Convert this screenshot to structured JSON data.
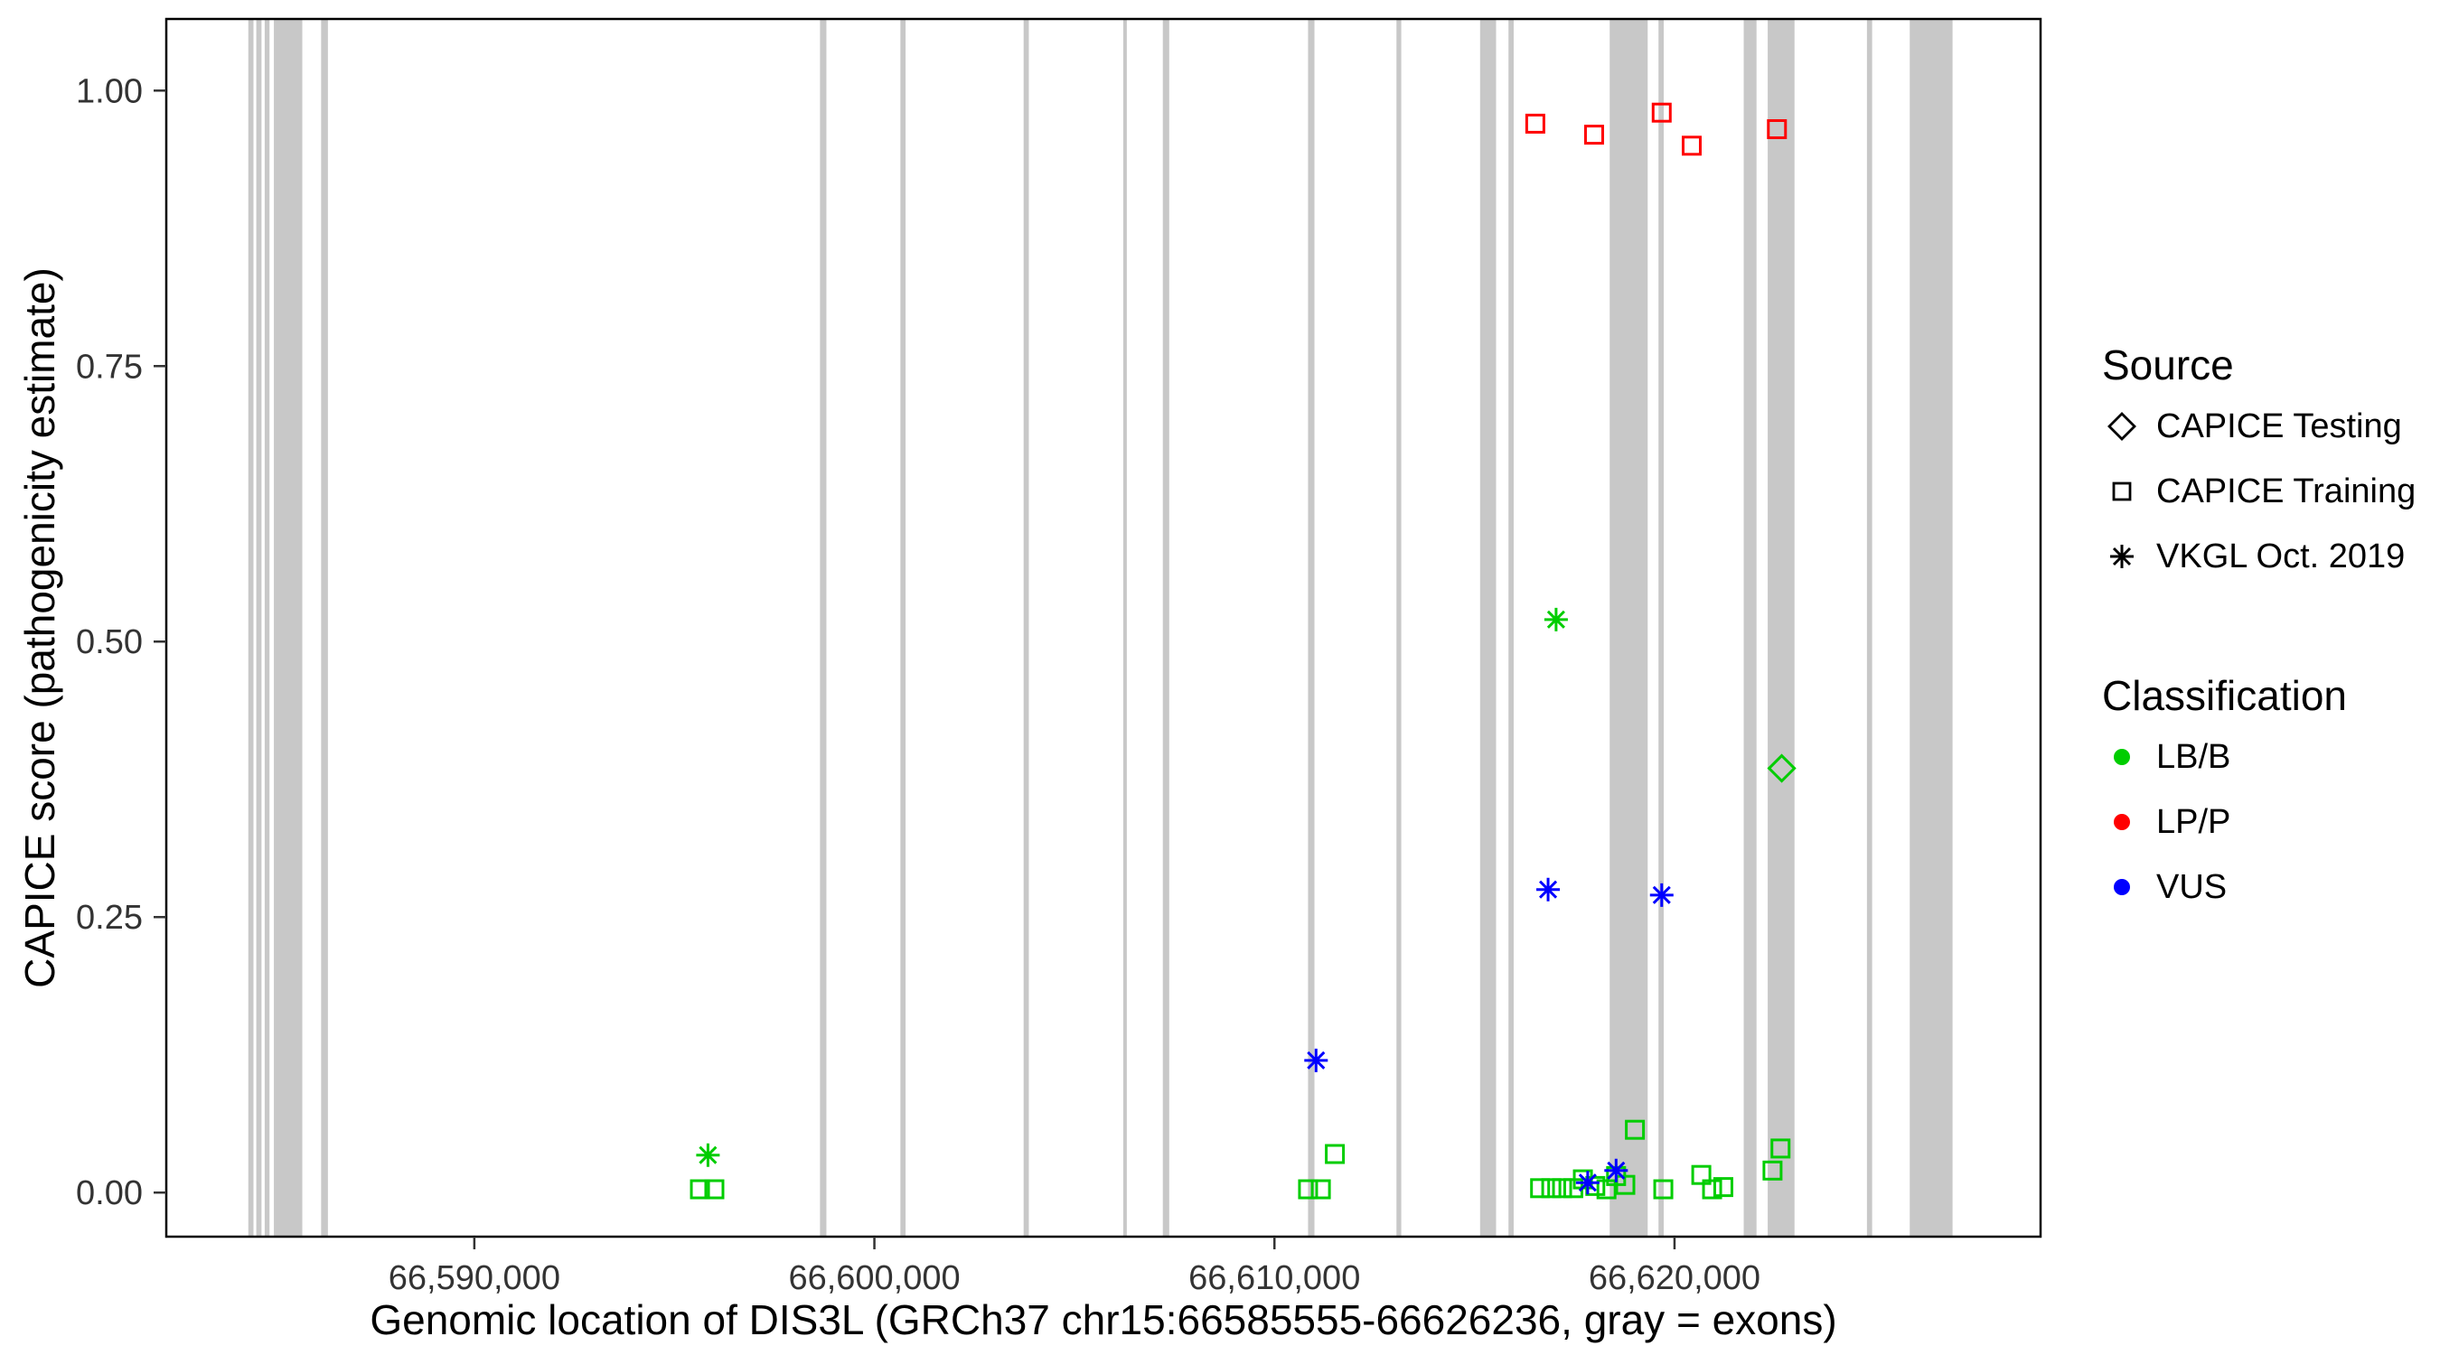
{
  "chart_data": {
    "type": "scatter",
    "title": "",
    "xlabel": "Genomic location of DIS3L (GRCh37 chr15:66585555-66626236, gray = exons)",
    "ylabel": "CAPICE score (pathogenicity estimate)",
    "xlim": [
      66582300,
      66629150
    ],
    "ylim": [
      -0.04,
      1.065
    ],
    "grid": false,
    "x_ticks": [
      {
        "value": 66590000,
        "label": "66,590,000"
      },
      {
        "value": 66600000,
        "label": "66,600,000"
      },
      {
        "value": 66610000,
        "label": "66,610,000"
      },
      {
        "value": 66620000,
        "label": "66,620,000"
      }
    ],
    "y_ticks": [
      {
        "value": 0.0,
        "label": "0.00"
      },
      {
        "value": 0.25,
        "label": "0.25"
      },
      {
        "value": 0.5,
        "label": "0.50"
      },
      {
        "value": 0.75,
        "label": "0.75"
      },
      {
        "value": 1.0,
        "label": "1.00"
      }
    ],
    "exon_color": "#C8C8C8",
    "exons": [
      [
        66584350,
        66584480
      ],
      [
        66584550,
        66584680
      ],
      [
        66584760,
        66584880
      ],
      [
        66584990,
        66585700
      ],
      [
        66586170,
        66586340
      ],
      [
        66598640,
        66598800
      ],
      [
        66600650,
        66600780
      ],
      [
        66603730,
        66603860
      ],
      [
        66606220,
        66606310
      ],
      [
        66607210,
        66607370
      ],
      [
        66610840,
        66611000
      ],
      [
        66613050,
        66613170
      ],
      [
        66615140,
        66615540
      ],
      [
        66615850,
        66615980
      ],
      [
        66618380,
        66619330
      ],
      [
        66619600,
        66619730
      ],
      [
        66621730,
        66622050
      ],
      [
        66622330,
        66623000
      ],
      [
        66624810,
        66624940
      ],
      [
        66625880,
        66626950
      ]
    ],
    "classification_colors": {
      "LB/B": "#00CD00",
      "LP/P": "#FF0000",
      "VUS": "#0000FF"
    },
    "source_shapes": {
      "CAPICE Testing": "diamond",
      "CAPICE Training": "square",
      "VKGL Oct. 2019": "asterisk"
    },
    "points": [
      {
        "x": 66616520,
        "y": 0.97,
        "classification": "LP/P",
        "source": "CAPICE Training"
      },
      {
        "x": 66617990,
        "y": 0.96,
        "classification": "LP/P",
        "source": "CAPICE Training"
      },
      {
        "x": 66619680,
        "y": 0.98,
        "classification": "LP/P",
        "source": "CAPICE Training"
      },
      {
        "x": 66620430,
        "y": 0.95,
        "classification": "LP/P",
        "source": "CAPICE Training"
      },
      {
        "x": 66622560,
        "y": 0.965,
        "classification": "LP/P",
        "source": "CAPICE Training"
      },
      {
        "x": 66595840,
        "y": 0.034,
        "classification": "LB/B",
        "source": "VKGL Oct. 2019"
      },
      {
        "x": 66617040,
        "y": 0.52,
        "classification": "LB/B",
        "source": "VKGL Oct. 2019"
      },
      {
        "x": 66595640,
        "y": 0.003,
        "classification": "LB/B",
        "source": "CAPICE Training"
      },
      {
        "x": 66596000,
        "y": 0.003,
        "classification": "LB/B",
        "source": "CAPICE Training"
      },
      {
        "x": 66610840,
        "y": 0.003,
        "classification": "LB/B",
        "source": "CAPICE Training"
      },
      {
        "x": 66611160,
        "y": 0.003,
        "classification": "LB/B",
        "source": "CAPICE Training"
      },
      {
        "x": 66611510,
        "y": 0.035,
        "classification": "LB/B",
        "source": "CAPICE Training"
      },
      {
        "x": 66616640,
        "y": 0.004,
        "classification": "LB/B",
        "source": "CAPICE Training"
      },
      {
        "x": 66616920,
        "y": 0.004,
        "classification": "LB/B",
        "source": "CAPICE Training"
      },
      {
        "x": 66617190,
        "y": 0.004,
        "classification": "LB/B",
        "source": "CAPICE Training"
      },
      {
        "x": 66617470,
        "y": 0.004,
        "classification": "LB/B",
        "source": "CAPICE Training"
      },
      {
        "x": 66617710,
        "y": 0.012,
        "classification": "LB/B",
        "source": "CAPICE Training"
      },
      {
        "x": 66618020,
        "y": 0.006,
        "classification": "LB/B",
        "source": "CAPICE Training"
      },
      {
        "x": 66618300,
        "y": 0.003,
        "classification": "LB/B",
        "source": "CAPICE Training"
      },
      {
        "x": 66618540,
        "y": 0.015,
        "classification": "LB/B",
        "source": "CAPICE Training"
      },
      {
        "x": 66618770,
        "y": 0.007,
        "classification": "LB/B",
        "source": "CAPICE Training"
      },
      {
        "x": 66619010,
        "y": 0.057,
        "classification": "LB/B",
        "source": "CAPICE Training"
      },
      {
        "x": 66619720,
        "y": 0.003,
        "classification": "LB/B",
        "source": "CAPICE Training"
      },
      {
        "x": 66620670,
        "y": 0.016,
        "classification": "LB/B",
        "source": "CAPICE Training"
      },
      {
        "x": 66620940,
        "y": 0.003,
        "classification": "LB/B",
        "source": "CAPICE Training"
      },
      {
        "x": 66621220,
        "y": 0.005,
        "classification": "LB/B",
        "source": "CAPICE Training"
      },
      {
        "x": 66622450,
        "y": 0.02,
        "classification": "LB/B",
        "source": "CAPICE Training"
      },
      {
        "x": 66622650,
        "y": 0.04,
        "classification": "LB/B",
        "source": "CAPICE Training"
      },
      {
        "x": 66611040,
        "y": 0.12,
        "classification": "VUS",
        "source": "VKGL Oct. 2019"
      },
      {
        "x": 66616840,
        "y": 0.275,
        "classification": "VUS",
        "source": "VKGL Oct. 2019"
      },
      {
        "x": 66619680,
        "y": 0.27,
        "classification": "VUS",
        "source": "VKGL Oct. 2019"
      },
      {
        "x": 66617830,
        "y": 0.009,
        "classification": "VUS",
        "source": "VKGL Oct. 2019"
      },
      {
        "x": 66618540,
        "y": 0.02,
        "classification": "VUS",
        "source": "VKGL Oct. 2019"
      },
      {
        "x": 66622680,
        "y": 0.385,
        "classification": "LB/B",
        "source": "CAPICE Testing"
      }
    ]
  },
  "legend": {
    "source": {
      "title": "Source",
      "items": [
        {
          "label": "CAPICE Testing",
          "shape": "diamond"
        },
        {
          "label": "CAPICE Training",
          "shape": "square"
        },
        {
          "label": "VKGL Oct. 2019",
          "shape": "asterisk"
        }
      ]
    },
    "classification": {
      "title": "Classification",
      "items": [
        {
          "label": "LB/B",
          "color": "#00CD00"
        },
        {
          "label": "LP/P",
          "color": "#FF0000"
        },
        {
          "label": "VUS",
          "color": "#0000FF"
        }
      ]
    }
  }
}
